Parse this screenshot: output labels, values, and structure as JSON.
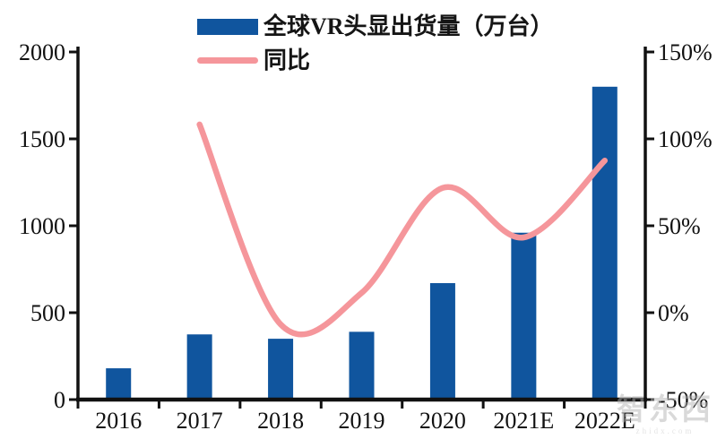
{
  "watermark": {
    "logo": "智东西",
    "site": "zhidx.com"
  },
  "chart_data": {
    "type": "bar+line",
    "title": "",
    "categories": [
      "2016",
      "2017",
      "2018",
      "2019",
      "2020",
      "2021E",
      "2022E"
    ],
    "series": [
      {
        "name": "全球VR头显出货量（万台）",
        "type": "bar",
        "axis": "left",
        "color": "#10559E",
        "values": [
          180,
          375,
          350,
          390,
          670,
          960,
          1800
        ]
      },
      {
        "name": "同比",
        "type": "line",
        "axis": "right",
        "color": "#F5969B",
        "unit": "%",
        "values": [
          null,
          108.3,
          -6.7,
          11.4,
          71.8,
          43.3,
          87.5
        ]
      }
    ],
    "left_axis": {
      "ticks": [
        0,
        500,
        1000,
        1500,
        2000
      ],
      "range": [
        0,
        2000
      ],
      "label": ""
    },
    "right_axis": {
      "ticks": [
        -50,
        0,
        50,
        100,
        150
      ],
      "range": [
        -50,
        150
      ],
      "format": "%",
      "tick_labels": [
        "-50%",
        "0%",
        "50%",
        "100%",
        "150%"
      ]
    },
    "grid": false,
    "legend_position": "top-center",
    "axis_color": "#111111",
    "text_color": "#111111"
  }
}
